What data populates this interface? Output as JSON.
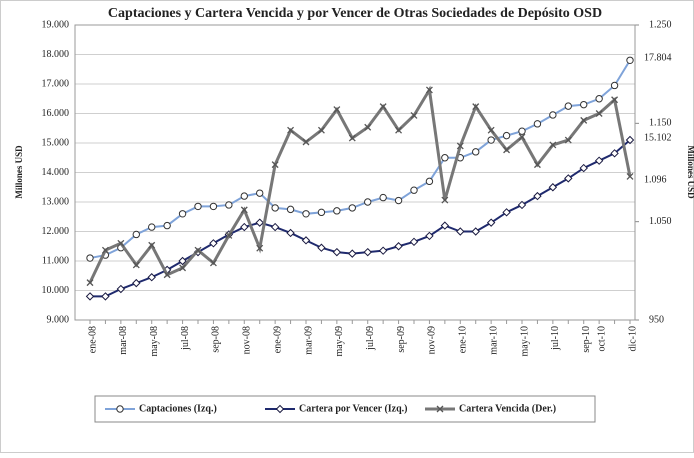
{
  "chart_data": {
    "type": "line",
    "title": "Captaciones y Cartera Vencida y por Vencer de Otras Sociedades de Depósito OSD",
    "y_label": "Millones  USD",
    "y2_label": "Millones  USD",
    "categories": [
      "ene-08",
      null,
      "mar-08",
      null,
      "may-08",
      null,
      "jul-08",
      null,
      "sep-08",
      null,
      "nov-08",
      null,
      "ene-09",
      null,
      "mar-09",
      null,
      "may-09",
      null,
      "jul-09",
      null,
      "sep-09",
      null,
      "nov-09",
      null,
      "ene-10",
      null,
      "mar-10",
      null,
      "may-10",
      null,
      "jul-10",
      null,
      "sep-10",
      "oct-10",
      null,
      "dic-10"
    ],
    "ylim": [
      9000,
      19000
    ],
    "yticks": [
      {
        "value": 9000,
        "label": "9.000"
      },
      {
        "value": 10000,
        "label": "10.000"
      },
      {
        "value": 11000,
        "label": "11.000"
      },
      {
        "value": 12000,
        "label": "12.000"
      },
      {
        "value": 13000,
        "label": "13.000"
      },
      {
        "value": 14000,
        "label": "14.000"
      },
      {
        "value": 15000,
        "label": "15.000"
      },
      {
        "value": 16000,
        "label": "16.000"
      },
      {
        "value": 17000,
        "label": "17.000"
      },
      {
        "value": 18000,
        "label": "18.000"
      },
      {
        "value": 19000,
        "label": "19.000"
      }
    ],
    "y2lim": [
      950,
      1250
    ],
    "y2ticks": [
      950,
      {
        "value": 1050,
        "label": "1.050"
      },
      {
        "value": 1150,
        "label": "1.150"
      },
      {
        "value": 1250,
        "label": "1.250"
      }
    ],
    "grid": true,
    "legend": "bottom",
    "series": [
      {
        "name": "Captaciones (Izq.)",
        "color": "#7fa3d9",
        "marker": "circle",
        "values": [
          11100,
          11200,
          11450,
          11900,
          12150,
          12200,
          12600,
          12850,
          12850,
          12900,
          13200,
          13300,
          12800,
          12750,
          12600,
          12650,
          12700,
          12800,
          13000,
          13150,
          13050,
          13400,
          13700,
          14500,
          14500,
          14700,
          15100,
          15250,
          15400,
          15650,
          15950,
          16250,
          16300,
          16500,
          16950,
          17804
        ],
        "value_labels": [
          null,
          null,
          null,
          null,
          null,
          null,
          null,
          null,
          null,
          null,
          null,
          null,
          null,
          null,
          null,
          null,
          null,
          null,
          null,
          null,
          null,
          null,
          null,
          null,
          null,
          null,
          null,
          null,
          null,
          null,
          null,
          null,
          null,
          null,
          null,
          "17.804"
        ]
      },
      {
        "name": "Cartera por Vencer (Izq.)",
        "color": "#1f2a6e",
        "marker": "diamond",
        "values": [
          9800,
          9800,
          10050,
          10250,
          10450,
          10700,
          11000,
          11300,
          11600,
          11900,
          12150,
          12300,
          12150,
          11950,
          11700,
          11450,
          11300,
          11250,
          11300,
          11350,
          11500,
          11650,
          11850,
          12200,
          12000,
          12000,
          12300,
          12650,
          12900,
          13200,
          13500,
          13800,
          14150,
          14400,
          14650,
          15102
        ],
        "value_labels": [
          null,
          null,
          null,
          null,
          null,
          null,
          null,
          null,
          null,
          null,
          null,
          null,
          null,
          null,
          null,
          null,
          null,
          null,
          null,
          null,
          null,
          null,
          null,
          null,
          null,
          null,
          null,
          null,
          null,
          null,
          null,
          null,
          null,
          null,
          null,
          "15.102"
        ]
      },
      {
        "name": "Cartera Vencida (Der.)",
        "color": "#777777",
        "marker": "x",
        "axis": "y2",
        "values": [
          988,
          1021,
          1028,
          1006,
          1026,
          996,
          1003,
          1021,
          1008,
          1036,
          1062,
          1023,
          1108,
          1143,
          1131,
          1143,
          1164,
          1135,
          1146,
          1167,
          1143,
          1158,
          1184,
          1072,
          1127,
          1167,
          1143,
          1123,
          1136,
          1108,
          1128,
          1133,
          1153,
          1160,
          1174,
          1096
        ],
        "value_labels": [
          null,
          null,
          null,
          null,
          null,
          null,
          null,
          null,
          null,
          null,
          null,
          null,
          null,
          null,
          null,
          null,
          null,
          null,
          null,
          null,
          null,
          null,
          null,
          null,
          null,
          null,
          null,
          null,
          null,
          null,
          null,
          null,
          null,
          null,
          null,
          "1.096"
        ]
      }
    ]
  }
}
